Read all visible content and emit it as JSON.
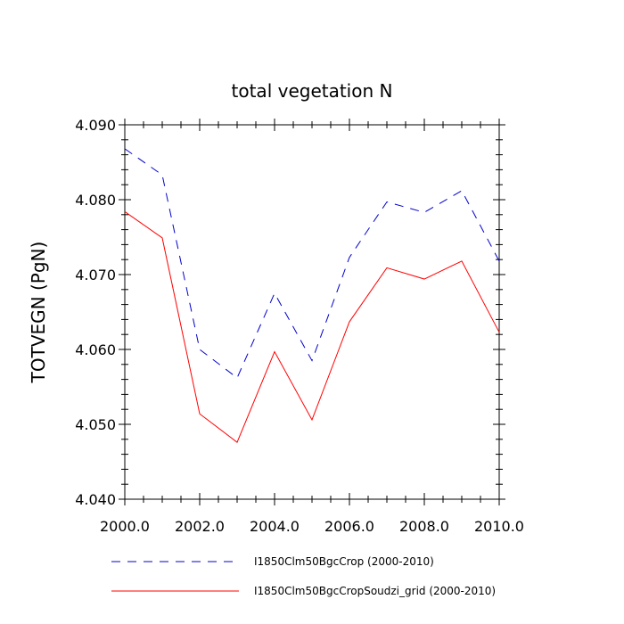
{
  "chart_data": {
    "type": "line",
    "title": "total vegetation N",
    "ylabel": "TOTVEGN  (PgN)",
    "xlabel": "",
    "xlim": [
      2000,
      2010
    ],
    "ylim": [
      4.04,
      4.09
    ],
    "x_ticks": [
      2000,
      2002,
      2004,
      2006,
      2008,
      2010
    ],
    "x_tick_labels": [
      "2000.0",
      "2002.0",
      "2004.0",
      "2006.0",
      "2008.0",
      "2010.0"
    ],
    "y_ticks": [
      4.04,
      4.05,
      4.06,
      4.07,
      4.08,
      4.09
    ],
    "y_tick_labels": [
      "4.040",
      "4.050",
      "4.060",
      "4.070",
      "4.080",
      "4.090"
    ],
    "x": [
      2000,
      2001,
      2002,
      2003,
      2004,
      2005,
      2006,
      2007,
      2008,
      2009,
      2010
    ],
    "series": [
      {
        "name": "I1850Clm50BgcCrop (2000-2010)",
        "color": "#0000cc",
        "style": "dashed",
        "values": [
          4.0868,
          4.0833,
          4.06,
          4.0562,
          4.0675,
          4.0585,
          4.0723,
          4.0797,
          4.0783,
          4.0812,
          4.0718
        ]
      },
      {
        "name": "I1850Clm50BgcCropSoudzi_grid (2000-2010)",
        "color": "#ff0000",
        "style": "solid",
        "values": [
          4.0784,
          4.0749,
          4.0514,
          4.0476,
          4.0597,
          4.0506,
          4.0637,
          4.0709,
          4.0694,
          4.0718,
          4.0623
        ]
      }
    ],
    "grid": false,
    "legend_position": "bottom"
  }
}
